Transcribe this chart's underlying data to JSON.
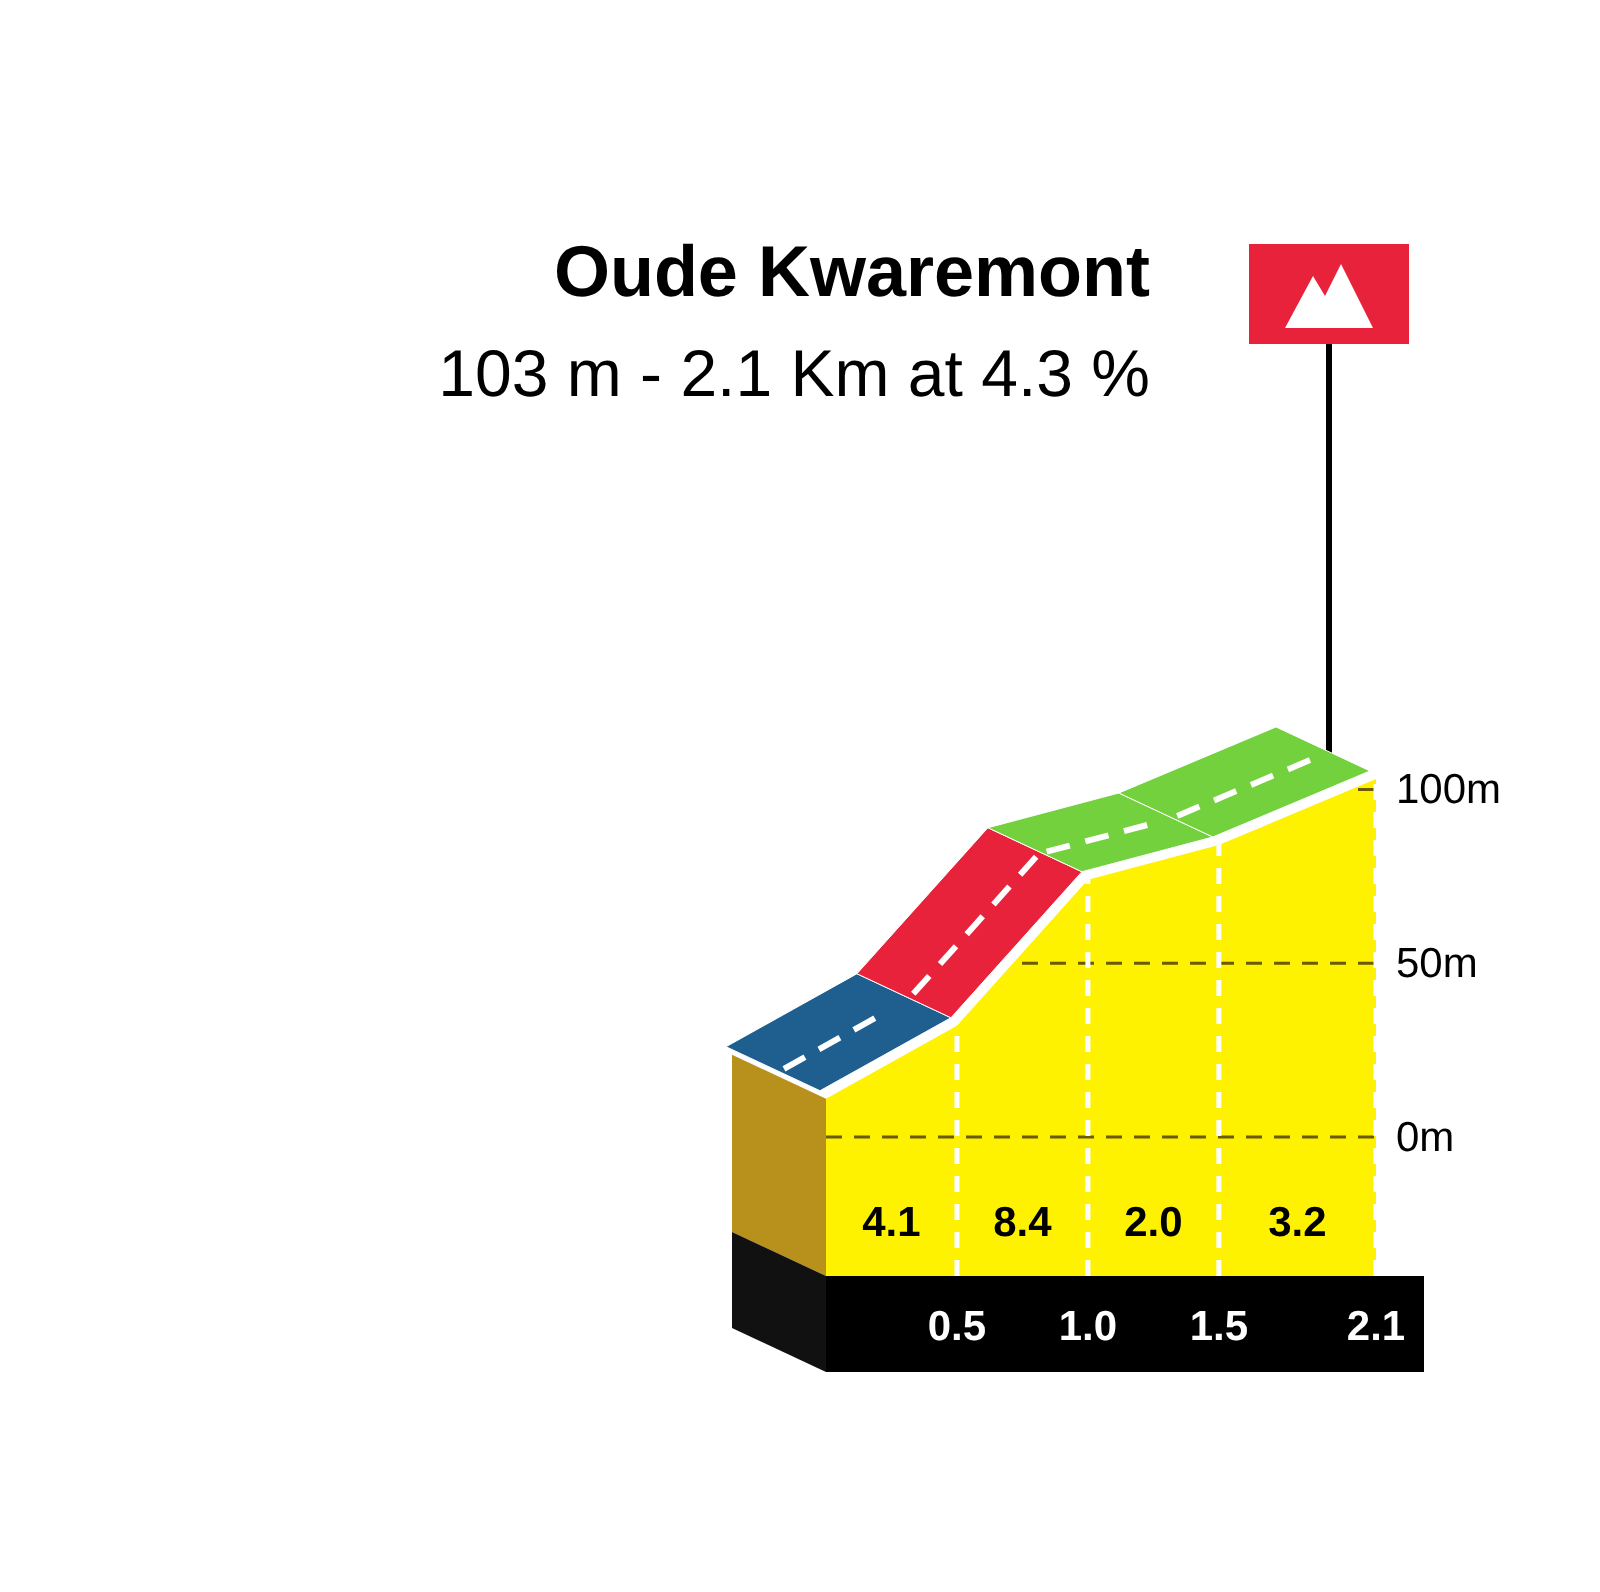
{
  "chart_data": {
    "type": "area",
    "title": "Oude Kwaremont",
    "subtitle": "103 m - 2.1 Km at 4.3 %",
    "xlim": [
      0,
      2.1
    ],
    "xticks": [
      0.5,
      {
        "value": 1,
        "label": "1.0"
      },
      1.5,
      2.1
    ],
    "ylim": [
      -40,
      105
    ],
    "yticks": [
      {
        "value": 0,
        "label": "0m"
      },
      {
        "value": 50,
        "label": "50m"
      },
      {
        "value": 100,
        "label": "100m"
      }
    ],
    "series": [
      {
        "color": "#fff200",
        "x": [
          0,
          0.5,
          1.0,
          1.5,
          2.1
        ],
        "values": [
          11,
          32,
          74,
          84,
          103
        ]
      }
    ],
    "grid": true,
    "annotations": [
      "4.1",
      "8.4",
      "2.0",
      "3.2"
    ]
  }
}
